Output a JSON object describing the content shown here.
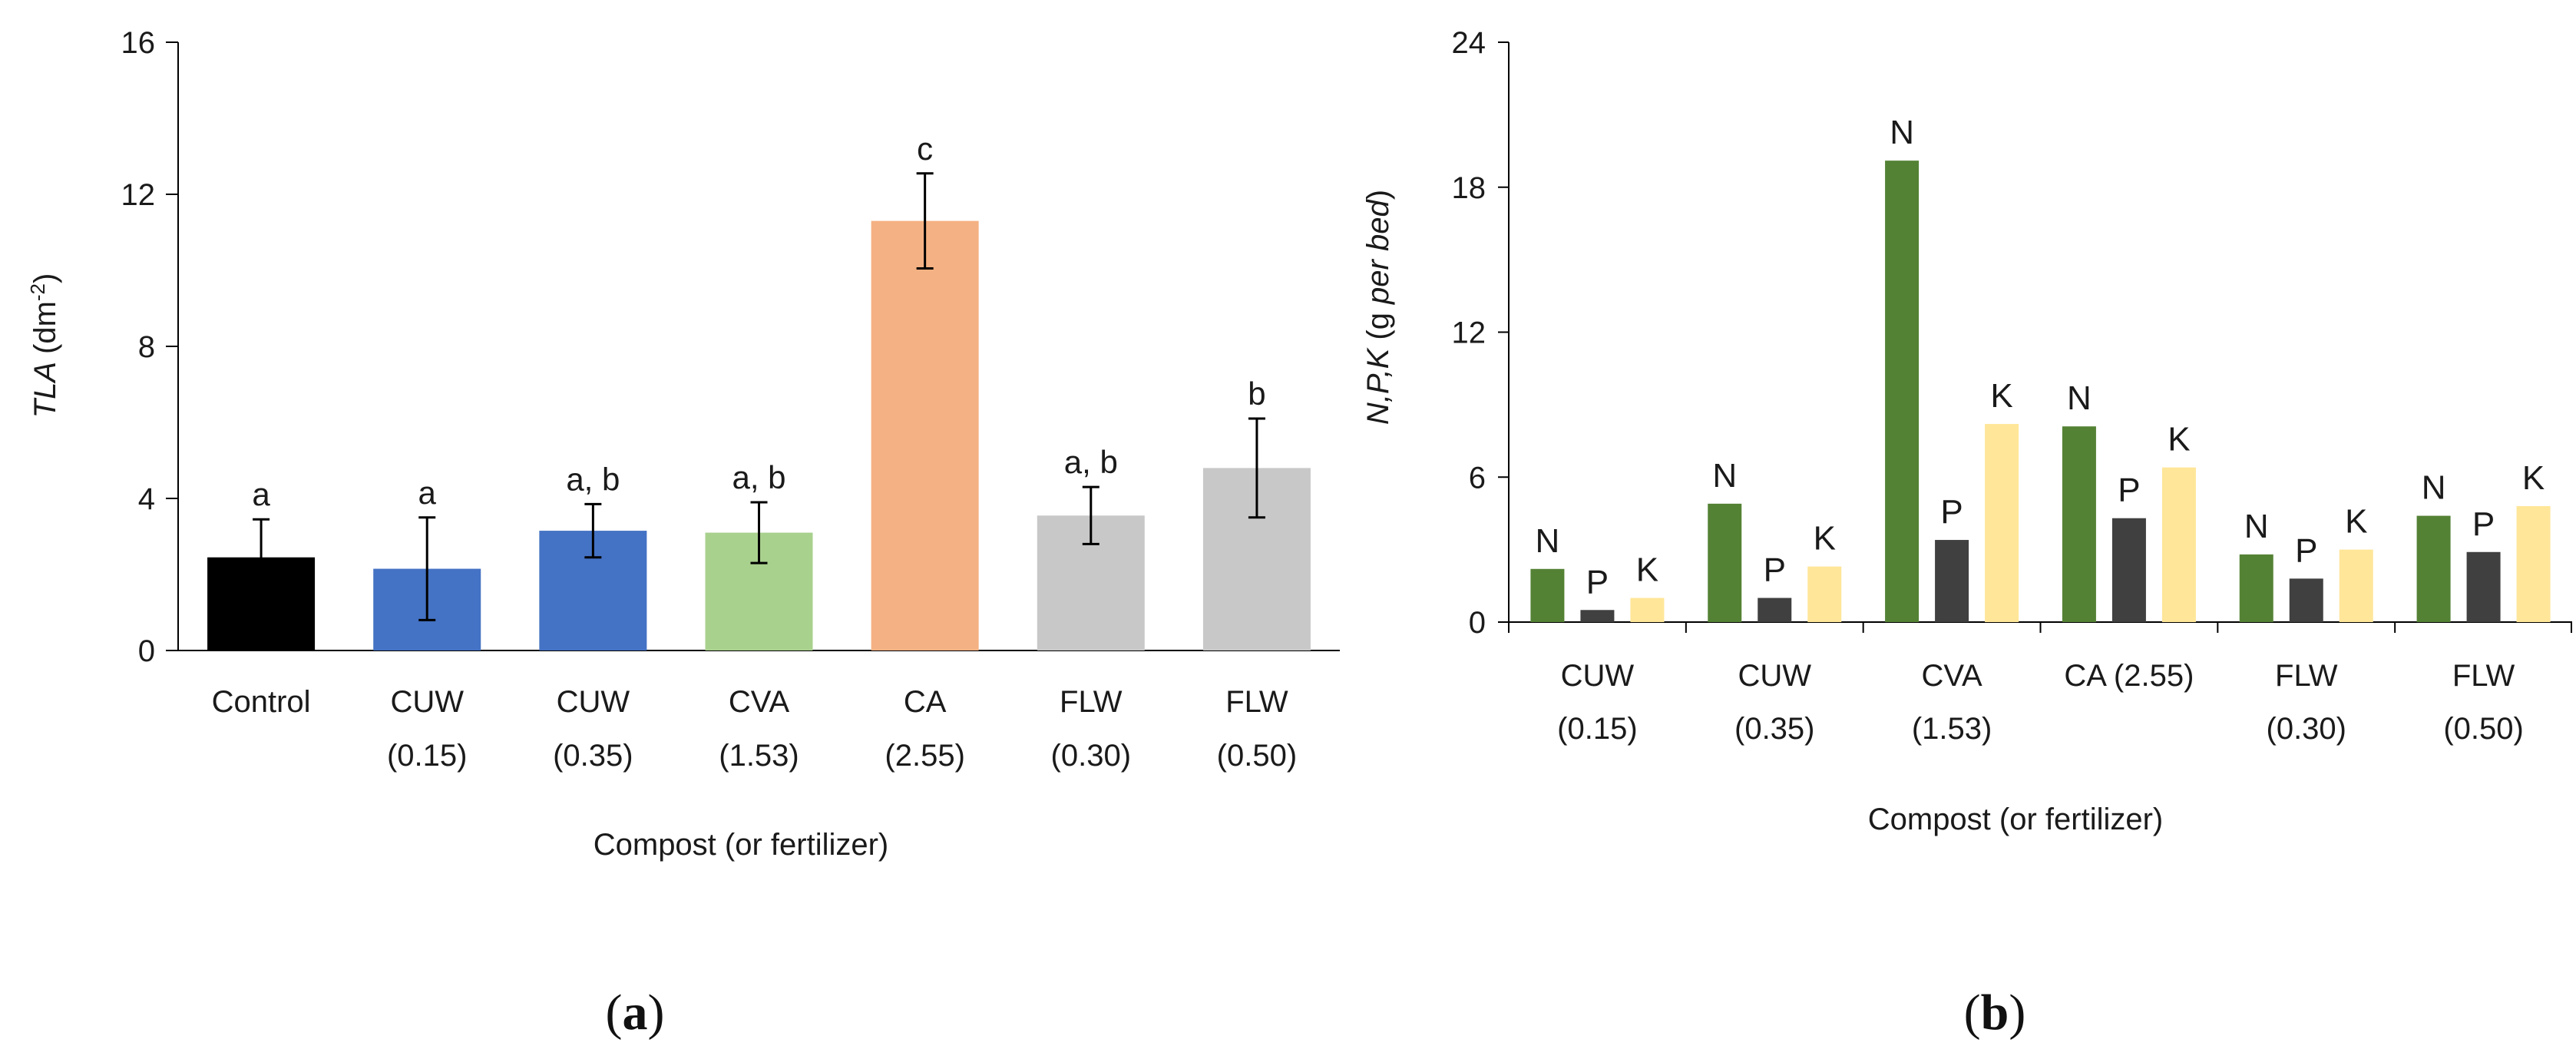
{
  "chart_data": [
    {
      "type": "bar",
      "panel": "(a)",
      "panel_letter": "a",
      "ylabel_italic": "TLA",
      "ylabel_unit": "(dm",
      "ylabel_exp": "-2",
      "ylabel_close": ")",
      "xlabel": "Compost (or fertilizer)",
      "ylim": [
        0,
        16
      ],
      "yticks": [
        0,
        4,
        8,
        12,
        16
      ],
      "categories": [
        {
          "line1": "Control",
          "line2": ""
        },
        {
          "line1": "CUW",
          "line2": "(0.15)"
        },
        {
          "line1": "CUW",
          "line2": "(0.35)"
        },
        {
          "line1": "CVA",
          "line2": "(1.53)"
        },
        {
          "line1": "CA",
          "line2": "(2.55)"
        },
        {
          "line1": "FLW",
          "line2": "(0.30)"
        },
        {
          "line1": "FLW",
          "line2": "(0.50)"
        }
      ],
      "values": [
        2.45,
        2.15,
        3.15,
        3.1,
        11.3,
        3.55,
        4.8
      ],
      "errors": [
        1.0,
        1.35,
        0.7,
        0.8,
        1.25,
        0.75,
        1.3
      ],
      "letters": [
        "a",
        "a",
        "a, b",
        "a, b",
        "c",
        "a, b",
        "b"
      ],
      "colors": [
        "#000000",
        "#4472c4",
        "#4472c4",
        "#a9d18e",
        "#f4b183",
        "#c8c8c8",
        "#c8c8c8"
      ]
    },
    {
      "type": "bar",
      "panel": "(b)",
      "panel_letter": "b",
      "ylabel": "N,P,K (g per bed)",
      "ylabel_parts": [
        "N,P,K",
        " (g ",
        "per bed",
        ")"
      ],
      "xlabel": "Compost (or fertilizer)",
      "ylim": [
        0,
        24
      ],
      "yticks": [
        0,
        6,
        12,
        18,
        24
      ],
      "categories": [
        {
          "line1": "CUW",
          "line2": "(0.15)"
        },
        {
          "line1": "CUW",
          "line2": "(0.35)"
        },
        {
          "line1": "CVA",
          "line2": "(1.53)"
        },
        {
          "line1": "CA (2.55)",
          "line2": ""
        },
        {
          "line1": "FLW",
          "line2": "(0.30)"
        },
        {
          "line1": "FLW",
          "line2": "(0.50)"
        }
      ],
      "series": [
        {
          "name": "N",
          "color": "#548235",
          "values": [
            2.2,
            4.9,
            19.1,
            8.1,
            2.8,
            4.4
          ]
        },
        {
          "name": "P",
          "color": "#404040",
          "values": [
            0.5,
            1.0,
            3.4,
            4.3,
            1.8,
            2.9
          ]
        },
        {
          "name": "K",
          "color": "#ffe699",
          "values": [
            1.0,
            2.3,
            8.2,
            6.4,
            3.0,
            4.8
          ]
        }
      ]
    }
  ]
}
